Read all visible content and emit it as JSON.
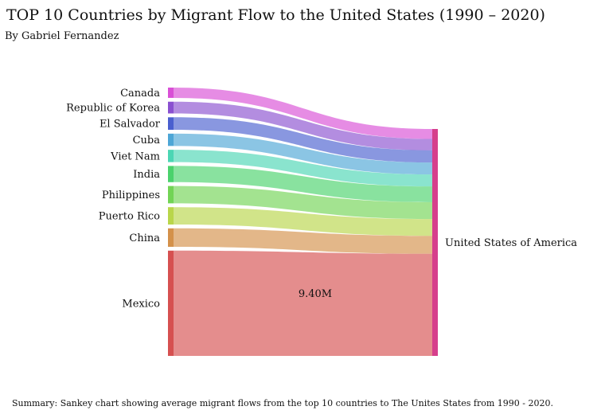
{
  "header": {
    "title": "TOP 10 Countries by Migrant Flow to the United States (1990 – 2020)",
    "subtitle": "By Gabriel Fernandez"
  },
  "footer": {
    "summary": "Summary: Sankey chart showing average migrant flows from the top 10 countries to The Unites States from 1990 - 2020."
  },
  "chart_data": {
    "type": "sankey",
    "target": {
      "name": "United States of America",
      "color": "#d63f8c"
    },
    "flow_label": "9.40M",
    "sources": [
      {
        "name": "Canada",
        "value": 0.92,
        "color": "#d94fd6"
      },
      {
        "name": "Republic of Korea",
        "value": 1.05,
        "color": "#8a50d0"
      },
      {
        "name": "El Salvador",
        "value": 1.12,
        "color": "#4a5fcf"
      },
      {
        "name": "Cuba",
        "value": 1.1,
        "color": "#4da6d6"
      },
      {
        "name": "Viet Nam",
        "value": 1.1,
        "color": "#4bd6b4"
      },
      {
        "name": "India",
        "value": 1.45,
        "color": "#4ad26c"
      },
      {
        "name": "Philippines",
        "value": 1.55,
        "color": "#72d455"
      },
      {
        "name": "Puerto Rico",
        "value": 1.55,
        "color": "#b9d64a"
      },
      {
        "name": "China",
        "value": 1.65,
        "color": "#d4914a"
      },
      {
        "name": "Mexico",
        "value": 9.4,
        "color": "#d65050"
      }
    ]
  }
}
